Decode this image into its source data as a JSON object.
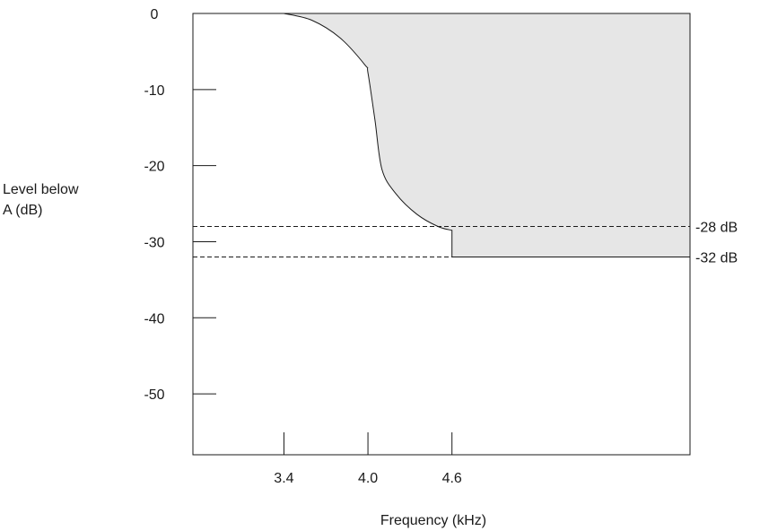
{
  "chart_data": {
    "type": "area",
    "xlabel": "Frequency (kHz)",
    "ylabel_lines": [
      "Level below",
      "A (dB)"
    ],
    "x_ticks": [
      {
        "value": 3.4,
        "label": "3.4"
      },
      {
        "value": 4.0,
        "label": "4.0"
      },
      {
        "value": 4.6,
        "label": "4.6"
      }
    ],
    "y_ticks": [
      {
        "value": 0,
        "label": "0"
      },
      {
        "value": -10,
        "label": "-10"
      },
      {
        "value": -20,
        "label": "-20"
      },
      {
        "value": -30,
        "label": "-30"
      },
      {
        "value": -40,
        "label": "-40"
      },
      {
        "value": -50,
        "label": "-50"
      }
    ],
    "xlim": [
      2.75,
      6.3
    ],
    "ylim": [
      -58,
      0
    ],
    "mask_curve": [
      {
        "x": 2.75,
        "y": 0
      },
      {
        "x": 3.4,
        "y": 0
      },
      {
        "x": 3.6,
        "y": -0.9
      },
      {
        "x": 3.8,
        "y": -3.2
      },
      {
        "x": 3.98,
        "y": -6.8
      },
      {
        "x": 4.0,
        "y": -7.8
      },
      {
        "x": 4.05,
        "y": -14
      },
      {
        "x": 4.1,
        "y": -20.5
      },
      {
        "x": 4.2,
        "y": -23.7
      },
      {
        "x": 4.35,
        "y": -26.4
      },
      {
        "x": 4.5,
        "y": -28.0
      },
      {
        "x": 4.6,
        "y": -28.5
      },
      {
        "x": 4.6,
        "y": -32
      },
      {
        "x": 6.3,
        "y": -32
      }
    ],
    "reference_lines": [
      {
        "y": -28,
        "label": "-28 dB"
      },
      {
        "y": -32,
        "label": "-32 dB"
      }
    ],
    "shaded_region": "above mask",
    "colors": {
      "fill": "#e6e6e6",
      "line": "#1a1a1a"
    }
  }
}
